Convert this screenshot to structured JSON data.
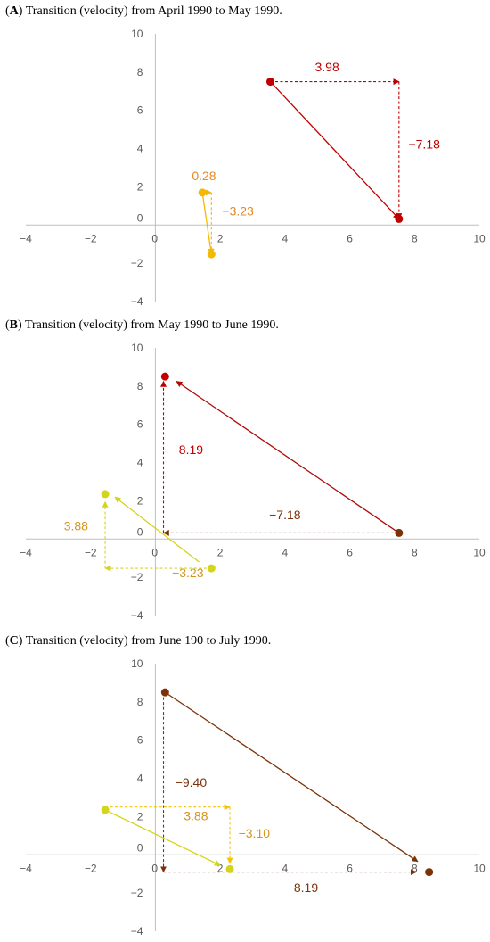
{
  "chart_data": [
    {
      "type": "scatter",
      "panel": "A",
      "title": "Transition (velocity) from April 1990 to May 1990.",
      "xlim": [
        -4,
        10
      ],
      "ylim": [
        -4,
        10
      ],
      "x_ticks": [
        -4,
        -2,
        0,
        2,
        4,
        6,
        8,
        10
      ],
      "y_ticks": [
        -4,
        -2,
        0,
        2,
        4,
        6,
        8,
        10
      ],
      "grid": false,
      "points": [
        {
          "x": 3.55,
          "y": 7.5,
          "color": "#c00000"
        },
        {
          "x": 7.52,
          "y": 0.32,
          "color": "#c00000"
        },
        {
          "x": 1.45,
          "y": 1.7,
          "color": "#f2b90a"
        },
        {
          "x": 1.73,
          "y": -1.53,
          "color": "#f2b90a"
        }
      ],
      "arrows": [
        {
          "from": [
            3.55,
            7.5
          ],
          "to": [
            7.52,
            0.32
          ],
          "style": "solid",
          "color": "#c00000"
        },
        {
          "from": [
            3.55,
            7.5
          ],
          "to": [
            7.52,
            7.5
          ],
          "style": "dashed",
          "color": "#c00000"
        },
        {
          "from": [
            7.52,
            7.5
          ],
          "to": [
            7.52,
            0.32
          ],
          "style": "dashed",
          "color": "#c00000"
        },
        {
          "from": [
            1.45,
            1.7
          ],
          "to": [
            1.73,
            -1.53
          ],
          "style": "solid",
          "color": "#f2b90a"
        },
        {
          "from": [
            1.45,
            1.7
          ],
          "to": [
            1.73,
            1.7
          ],
          "style": "dashed",
          "color": "#f2b90a"
        },
        {
          "from": [
            1.73,
            1.7
          ],
          "to": [
            1.73,
            -1.53
          ],
          "style": "dashed",
          "color": "#f2b90a"
        }
      ],
      "annotations": [
        {
          "text": "3.98",
          "x": 5.3,
          "y": 8.05,
          "color": "#c00000"
        },
        {
          "text": "−7.18",
          "x": 8.3,
          "y": 4.0,
          "color": "#c00000"
        },
        {
          "text": "0.28",
          "x": 1.5,
          "y": 2.35,
          "color": "#e58a26"
        },
        {
          "text": "−3.23",
          "x": 2.55,
          "y": 0.5,
          "color": "#e58a26"
        }
      ]
    },
    {
      "type": "scatter",
      "panel": "B",
      "title": "Transition (velocity) from May 1990 to June 1990.",
      "xlim": [
        -4,
        10
      ],
      "ylim": [
        -4,
        10
      ],
      "x_ticks": [
        -4,
        -2,
        0,
        2,
        4,
        6,
        8,
        10
      ],
      "y_ticks": [
        -4,
        -2,
        0,
        2,
        4,
        6,
        8,
        10
      ],
      "grid": false,
      "points": [
        {
          "x": 7.52,
          "y": 0.32,
          "color": "#7b3209"
        },
        {
          "x": 0.3,
          "y": 8.5,
          "color": "#c00000"
        },
        {
          "x": 1.73,
          "y": -1.53,
          "color": "#d4d41c"
        },
        {
          "x": -1.55,
          "y": 2.35,
          "color": "#d4d41c"
        }
      ],
      "arrows": [
        {
          "from": [
            7.52,
            0.32
          ],
          "to": [
            0.65,
            8.25
          ],
          "style": "solid",
          "color": "#b00a0a"
        },
        {
          "from": [
            7.52,
            0.32
          ],
          "to": [
            0.25,
            0.32
          ],
          "style": "dashed",
          "color": "#7b3209"
        },
        {
          "from": [
            0.25,
            0.32
          ],
          "to": [
            0.25,
            8.25
          ],
          "style": "dashed",
          "color": "#c00000"
        },
        {
          "from": [
            1.35,
            -1.2
          ],
          "to": [
            -1.25,
            2.2
          ],
          "style": "solid",
          "color": "#d4d41c"
        },
        {
          "from": [
            1.73,
            -1.53
          ],
          "to": [
            -1.55,
            -1.53
          ],
          "style": "dashed",
          "color": "#d4d41c"
        },
        {
          "from": [
            -1.55,
            -1.53
          ],
          "to": [
            -1.55,
            1.95
          ],
          "style": "dashed",
          "color": "#d4d41c"
        }
      ],
      "annotations": [
        {
          "text": "8.19",
          "x": 1.1,
          "y": 4.45,
          "color": "#c00000"
        },
        {
          "text": "−7.18",
          "x": 4.0,
          "y": 1.05,
          "color": "#7b3209"
        },
        {
          "text": "3.88",
          "x": -2.45,
          "y": 0.45,
          "color": "#d4941c"
        },
        {
          "text": "−3.23",
          "x": 1.0,
          "y": -2.0,
          "color": "#d4941c"
        }
      ]
    },
    {
      "type": "scatter",
      "panel": "C",
      "title": "Transition (velocity) from June 190 to July 1990.",
      "xlim": [
        -4,
        10
      ],
      "ylim": [
        -4,
        10
      ],
      "x_ticks": [
        -4,
        -2,
        0,
        2,
        4,
        6,
        8,
        10
      ],
      "y_ticks": [
        -4,
        -2,
        0,
        2,
        4,
        6,
        8,
        10
      ],
      "grid": false,
      "points": [
        {
          "x": 0.3,
          "y": 8.5,
          "color": "#7b3209"
        },
        {
          "x": 8.45,
          "y": -0.9,
          "color": "#7b3209"
        },
        {
          "x": -1.55,
          "y": 2.35,
          "color": "#d4d41c"
        },
        {
          "x": 2.3,
          "y": -0.75,
          "color": "#d4d41c"
        }
      ],
      "arrows": [
        {
          "from": [
            0.3,
            8.5
          ],
          "to": [
            8.1,
            -0.35
          ],
          "style": "solid",
          "color": "#7b3209"
        },
        {
          "from": [
            0.25,
            8.5
          ],
          "to": [
            0.25,
            -0.9
          ],
          "style": "dashed",
          "color": "#7b3209"
        },
        {
          "from": [
            0.25,
            -0.9
          ],
          "to": [
            8.05,
            -0.9
          ],
          "style": "dashed",
          "color": "#7b3209"
        },
        {
          "from": [
            -1.55,
            2.35
          ],
          "to": [
            2.0,
            -0.55
          ],
          "style": "solid",
          "color": "#d4d41c"
        },
        {
          "from": [
            -1.55,
            2.5
          ],
          "to": [
            2.3,
            2.5
          ],
          "style": "dashed",
          "color": "#f2c40a"
        },
        {
          "from": [
            2.3,
            2.5
          ],
          "to": [
            2.3,
            -0.45
          ],
          "style": "dashed",
          "color": "#f2c40a"
        }
      ],
      "annotations": [
        {
          "text": "−9.40",
          "x": 1.1,
          "y": 3.55,
          "color": "#7b3209"
        },
        {
          "text": "3.88",
          "x": 1.25,
          "y": 1.8,
          "color": "#d4941c"
        },
        {
          "text": "−3.10",
          "x": 3.05,
          "y": 0.9,
          "color": "#d4941c"
        },
        {
          "text": "8.19",
          "x": 4.65,
          "y": -1.95,
          "color": "#7b3209"
        }
      ]
    }
  ],
  "panels": [
    {
      "letter": "A",
      "title": "Transition (velocity) from April 1990 to May 1990."
    },
    {
      "letter": "B",
      "title": "Transition (velocity) from May 1990 to June 1990."
    },
    {
      "letter": "C",
      "title": "Transition (velocity) from June 190 to July 1990."
    }
  ]
}
